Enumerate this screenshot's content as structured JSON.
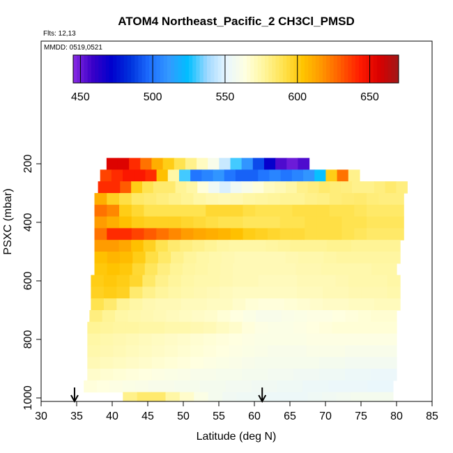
{
  "chart_data": {
    "type": "heatmap",
    "title": "ATOM4 Northeast_Pacific_2 CH3Cl_PMSD",
    "flights_label": "Flts: 12,13",
    "mmdd_label": "MMDD: 0519,0521",
    "xlabel": "Latitude (deg N)",
    "ylabel": "PSXC (mbar)",
    "xlim": [
      30,
      85
    ],
    "ylim": [
      1000,
      0
    ],
    "x_ticks": [
      30,
      35,
      40,
      45,
      50,
      55,
      60,
      65,
      70,
      75,
      80,
      85
    ],
    "y_ticks": [
      200,
      400,
      600,
      800,
      1000
    ],
    "colorbar": {
      "range": [
        445,
        670
      ],
      "ticks": [
        450,
        500,
        550,
        600,
        650
      ],
      "colors": [
        "#8a2be2",
        "#3a00c8",
        "#0000cd",
        "#0033dd",
        "#1e6fff",
        "#3399ff",
        "#00bfff",
        "#9fd8ff",
        "#e8f6ff",
        "#ffffe0",
        "#fff59a",
        "#ffe24d",
        "#ffc400",
        "#ff9500",
        "#ff5a00",
        "#ff1a00",
        "#d80000",
        "#a01818"
      ]
    },
    "arrows_at_latitude": [
      34.7,
      61.1
    ],
    "cell_height_mbar": 40,
    "rows": [
      {
        "p": 200,
        "x0": 39.2,
        "x1": 67.7,
        "values": [
          655,
          655,
          640,
          625,
          610,
          600,
          590,
          580,
          570,
          560,
          545,
          530,
          510,
          490,
          470,
          455,
          450,
          455
        ]
      },
      {
        "p": 240,
        "x0": 38.3,
        "x1": 74.8,
        "values": [
          635,
          640,
          645,
          645,
          640,
          605,
          575,
          530,
          500,
          505,
          510,
          500,
          495,
          495,
          500,
          505,
          500,
          505,
          510,
          525,
          600,
          625,
          580
        ]
      },
      {
        "p": 280,
        "x0": 38.0,
        "x1": 81.5,
        "values": [
          640,
          640,
          630,
          600,
          590,
          585,
          585,
          578,
          575,
          565,
          555,
          548,
          555,
          560,
          565,
          570,
          572,
          575,
          580,
          582,
          585,
          583,
          582,
          580,
          580,
          582,
          585,
          582
        ]
      },
      {
        "p": 320,
        "x0": 37.5,
        "x1": 81.0,
        "values": [
          610,
          598,
          592,
          586,
          584,
          582,
          580,
          578,
          575,
          573,
          572,
          573,
          575,
          576,
          577,
          578,
          578,
          580,
          581,
          583,
          584,
          585,
          583,
          582,
          582
        ]
      },
      {
        "p": 360,
        "x0": 37.5,
        "x1": 81.0,
        "values": [
          625,
          620,
          600,
          595,
          590,
          590,
          590,
          590,
          590,
          595,
          595,
          595,
          592,
          590,
          590,
          590,
          592,
          592,
          592,
          590,
          590,
          588,
          586,
          586,
          586
        ]
      },
      {
        "p": 400,
        "x0": 37.5,
        "x1": 81.0,
        "values": [
          615,
          610,
          605,
          600,
          598,
          598,
          598,
          596,
          594,
          592,
          590,
          590,
          588,
          588,
          588,
          590,
          590,
          592,
          592,
          592,
          590,
          590,
          588,
          588,
          588
        ]
      },
      {
        "p": 440,
        "x0": 37.5,
        "x1": 81.0,
        "values": [
          625,
          640,
          640,
          635,
          630,
          625,
          620,
          615,
          612,
          610,
          608,
          605,
          600,
          598,
          596,
          594,
          594,
          592,
          592,
          592,
          590,
          588,
          586,
          586,
          586
        ]
      },
      {
        "p": 480,
        "x0": 37.5,
        "x1": 80.5,
        "values": [
          615,
          615,
          612,
          605,
          598,
          590,
          585,
          582,
          580,
          578,
          576,
          575,
          575,
          575,
          576,
          577,
          578,
          578,
          578,
          579,
          579,
          578,
          578,
          578,
          578
        ]
      },
      {
        "p": 520,
        "x0": 37.5,
        "x1": 80.5,
        "values": [
          605,
          608,
          606,
          600,
          592,
          586,
          580,
          577,
          575,
          574,
          573,
          572,
          572,
          572,
          572,
          573,
          574,
          574,
          575,
          576,
          576,
          576,
          576,
          576
        ]
      },
      {
        "p": 560,
        "x0": 37.5,
        "x1": 80.0,
        "values": [
          602,
          604,
          602,
          595,
          588,
          582,
          578,
          576,
          575,
          574,
          573,
          572,
          572,
          572,
          572,
          572,
          573,
          573,
          574,
          574,
          574,
          574,
          575,
          575
        ]
      },
      {
        "p": 600,
        "x0": 37.0,
        "x1": 80.5,
        "values": [
          600,
          602,
          600,
          596,
          586,
          580,
          577,
          575,
          574,
          574,
          573,
          572,
          572,
          571,
          571,
          571,
          572,
          572,
          572,
          573,
          574,
          574,
          574,
          575
        ]
      },
      {
        "p": 640,
        "x0": 37.0,
        "x1": 80.5,
        "values": [
          598,
          600,
          598,
          585,
          580,
          577,
          575,
          574,
          573,
          572,
          571,
          570,
          570,
          570,
          570,
          570,
          571,
          571,
          572,
          572,
          573,
          573,
          573,
          574
        ]
      },
      {
        "p": 680,
        "x0": 37.0,
        "x1": 80.5,
        "values": [
          590,
          585,
          578,
          575,
          573,
          572,
          572,
          571,
          571,
          570,
          570,
          568,
          566,
          565,
          565,
          566,
          567,
          568,
          569,
          569,
          570,
          570,
          571,
          571
        ]
      },
      {
        "p": 720,
        "x0": 36.8,
        "x1": 80.0,
        "values": [
          582,
          578,
          575,
          574,
          573,
          572,
          571,
          570,
          569,
          568,
          566,
          564,
          562,
          560,
          560,
          561,
          562,
          563,
          563,
          564,
          565,
          566,
          567,
          567
        ]
      },
      {
        "p": 760,
        "x0": 36.5,
        "x1": 80.0,
        "values": [
          578,
          577,
          576,
          576,
          575,
          575,
          574,
          574,
          573,
          572,
          570,
          568,
          565,
          563,
          562,
          562,
          563,
          564,
          565,
          566,
          566,
          566,
          566,
          566
        ]
      },
      {
        "p": 800,
        "x0": 36.5,
        "x1": 80.0,
        "values": [
          575,
          574,
          573,
          572,
          571,
          570,
          569,
          568,
          567,
          566,
          565,
          564,
          563,
          562,
          562,
          562,
          562,
          563,
          563,
          563,
          563,
          563,
          563,
          563
        ]
      },
      {
        "p": 840,
        "x0": 36.5,
        "x1": 80.0,
        "values": [
          574,
          573,
          572,
          571,
          570,
          569,
          568,
          567,
          566,
          565,
          564,
          563,
          562,
          561,
          560,
          560,
          560,
          561,
          561,
          561,
          560,
          560,
          560,
          560
        ]
      },
      {
        "p": 880,
        "x0": 36.5,
        "x1": 80.0,
        "values": [
          572,
          571,
          570,
          569,
          568,
          567,
          566,
          565,
          564,
          563,
          562,
          561,
          560,
          559,
          559,
          559,
          559,
          559,
          558,
          558,
          557,
          557,
          557,
          557
        ]
      },
      {
        "p": 920,
        "x0": 36.5,
        "x1": 80.0,
        "values": [
          568,
          567,
          566,
          565,
          564,
          563,
          562,
          561,
          560,
          560,
          559,
          559,
          558,
          558,
          557,
          557,
          556,
          556,
          555,
          555,
          554,
          554,
          553,
          553
        ]
      },
      {
        "p": 960,
        "x0": 36.0,
        "x1": 79.5,
        "values": [
          565,
          564,
          563,
          562,
          561,
          560,
          560,
          559,
          559,
          558,
          558,
          557,
          557,
          556,
          556,
          555,
          555,
          554,
          554,
          553,
          553,
          553,
          552,
          552
        ]
      },
      {
        "p": 1000,
        "x0": 41.5,
        "x1": 79.5,
        "values": [
          580,
          585,
          585,
          575,
          568,
          562,
          558,
          556,
          555,
          555,
          554,
          554,
          554,
          555,
          556,
          557,
          558,
          558,
          558
        ]
      }
    ]
  }
}
